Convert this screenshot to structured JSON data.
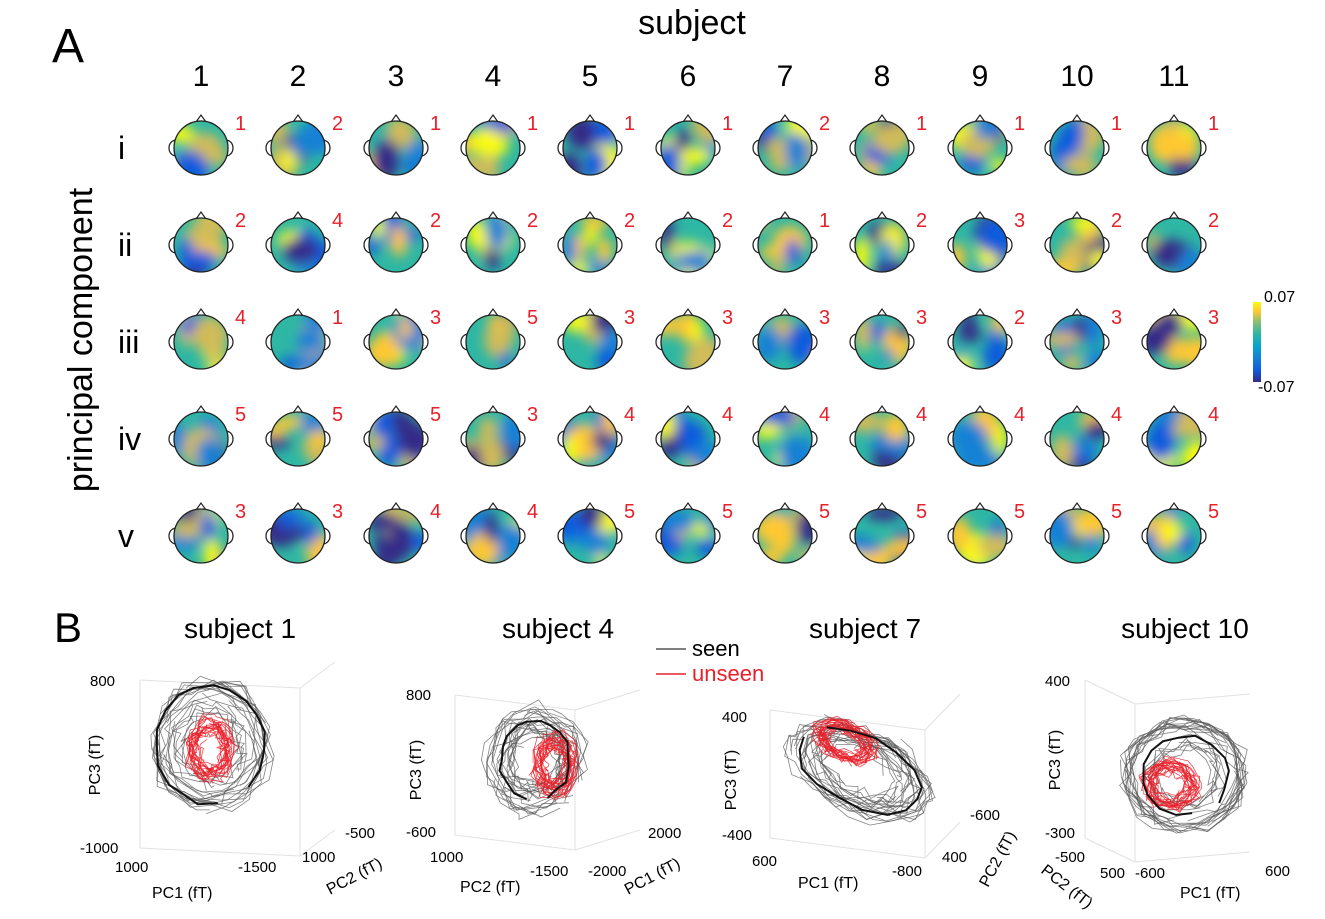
{
  "panel_a": {
    "label": "A",
    "column_header": "subject",
    "row_header": "principal component",
    "subjects": [
      "1",
      "2",
      "3",
      "4",
      "5",
      "6",
      "7",
      "8",
      "9",
      "10",
      "11"
    ],
    "components": [
      "i",
      "ii",
      "iii",
      "iv",
      "v"
    ],
    "rank_labels": [
      [
        "1",
        "2",
        "1",
        "1",
        "1",
        "1",
        "2",
        "1",
        "1",
        "1",
        "1"
      ],
      [
        "2",
        "4",
        "2",
        "2",
        "2",
        "2",
        "1",
        "2",
        "3",
        "2",
        "2"
      ],
      [
        "4",
        "1",
        "3",
        "5",
        "3",
        "3",
        "3",
        "3",
        "2",
        "3",
        "3"
      ],
      [
        "5",
        "5",
        "5",
        "3",
        "4",
        "4",
        "4",
        "4",
        "4",
        "4",
        "4"
      ],
      [
        "3",
        "3",
        "4",
        "4",
        "5",
        "5",
        "5",
        "5",
        "5",
        "5",
        "5"
      ]
    ],
    "colorbar": {
      "max_label": "0.07",
      "min_label": "-0.07",
      "max": 0.07,
      "min": -0.07,
      "colors": [
        "#352a87",
        "#0f5cdd",
        "#1481d6",
        "#06a4ca",
        "#2eb7a4",
        "#87bf77",
        "#d1bb59",
        "#fec832",
        "#f9fb0e"
      ]
    }
  },
  "panel_b": {
    "label": "B",
    "legend": [
      {
        "label": "seen",
        "color": "#555555"
      },
      {
        "label": "unseen",
        "color": "#e8202a"
      }
    ],
    "plots": [
      {
        "title": "subject 1",
        "zlabel": "PC3 (fT)",
        "z_ticks": [
          "800",
          "-1000"
        ],
        "x_axis": {
          "label": "PC1 (fT)",
          "ticks": [
            "1000",
            "-1500"
          ]
        },
        "y_axis": {
          "label": "PC2 (fT)",
          "ticks": [
            "1000",
            "-500"
          ]
        }
      },
      {
        "title": "subject 4",
        "zlabel": "PC3 (fT)",
        "z_ticks": [
          "800",
          "-600"
        ],
        "x_axis": {
          "label": "PC2 (fT)",
          "ticks": [
            "1000",
            "-1500"
          ]
        },
        "y_axis": {
          "label": "PC1 (fT)",
          "ticks": [
            "-2000",
            "2000"
          ]
        }
      },
      {
        "title": "subject 7",
        "zlabel": "PC3 (fT)",
        "z_ticks": [
          "400",
          "-400"
        ],
        "x_axis": {
          "label": "PC1 (fT)",
          "ticks": [
            "600",
            "-800"
          ]
        },
        "y_axis": {
          "label": "PC2 (fT)",
          "ticks": [
            "400",
            "-600"
          ]
        }
      },
      {
        "title": "subject 10",
        "zlabel": "PC3 (fT)",
        "z_ticks": [
          "400",
          "-300"
        ],
        "x_axis": {
          "label": "PC1 (fT)",
          "ticks": [
            "-600",
            "600"
          ]
        },
        "y_axis": {
          "label": "PC2 (fT)",
          "ticks": [
            "500",
            "-500"
          ]
        }
      }
    ]
  },
  "chart_data": [
    {
      "type": "heatmap",
      "title": "",
      "xlabel": "subject",
      "ylabel": "principal component",
      "categories_x": [
        "1",
        "2",
        "3",
        "4",
        "5",
        "6",
        "7",
        "8",
        "9",
        "10",
        "11"
      ],
      "categories_y": [
        "i",
        "ii",
        "iii",
        "iv",
        "v"
      ],
      "value_range": [
        -0.07,
        0.07
      ],
      "annotations": [
        [
          "1",
          "2",
          "1",
          "1",
          "1",
          "1",
          "2",
          "1",
          "1",
          "1",
          "1"
        ],
        [
          "2",
          "4",
          "2",
          "2",
          "2",
          "2",
          "1",
          "2",
          "3",
          "2",
          "2"
        ],
        [
          "4",
          "1",
          "3",
          "5",
          "3",
          "3",
          "3",
          "3",
          "2",
          "3",
          "3"
        ],
        [
          "5",
          "5",
          "5",
          "3",
          "4",
          "4",
          "4",
          "4",
          "4",
          "4",
          "4"
        ],
        [
          "3",
          "3",
          "4",
          "4",
          "5",
          "5",
          "5",
          "5",
          "5",
          "5",
          "5"
        ]
      ]
    },
    {
      "type": "line",
      "title": "subject 1",
      "xlabel": "PC1 (fT)",
      "ylabel": "PC2 (fT)",
      "zlabel": "PC3 (fT)",
      "xlim": [
        1000,
        -1500
      ],
      "ylim": [
        1000,
        -500
      ],
      "zlim": [
        -1000,
        800
      ],
      "series": [
        {
          "name": "seen"
        },
        {
          "name": "unseen"
        }
      ]
    },
    {
      "type": "line",
      "title": "subject 4",
      "xlabel": "PC2 (fT)",
      "ylabel": "PC1 (fT)",
      "zlabel": "PC3 (fT)",
      "xlim": [
        1000,
        -1500
      ],
      "ylim": [
        -2000,
        2000
      ],
      "zlim": [
        -600,
        800
      ],
      "series": [
        {
          "name": "seen"
        },
        {
          "name": "unseen"
        }
      ]
    },
    {
      "type": "line",
      "title": "subject 7",
      "xlabel": "PC1 (fT)",
      "ylabel": "PC2 (fT)",
      "zlabel": "PC3 (fT)",
      "xlim": [
        600,
        -800
      ],
      "ylim": [
        400,
        -600
      ],
      "zlim": [
        -400,
        400
      ],
      "series": [
        {
          "name": "seen"
        },
        {
          "name": "unseen"
        }
      ]
    },
    {
      "type": "line",
      "title": "subject 10",
      "xlabel": "PC1 (fT)",
      "ylabel": "PC2 (fT)",
      "zlabel": "PC3 (fT)",
      "xlim": [
        -600,
        600
      ],
      "ylim": [
        500,
        -500
      ],
      "zlim": [
        -300,
        400
      ],
      "series": [
        {
          "name": "seen"
        },
        {
          "name": "unseen"
        }
      ]
    }
  ]
}
